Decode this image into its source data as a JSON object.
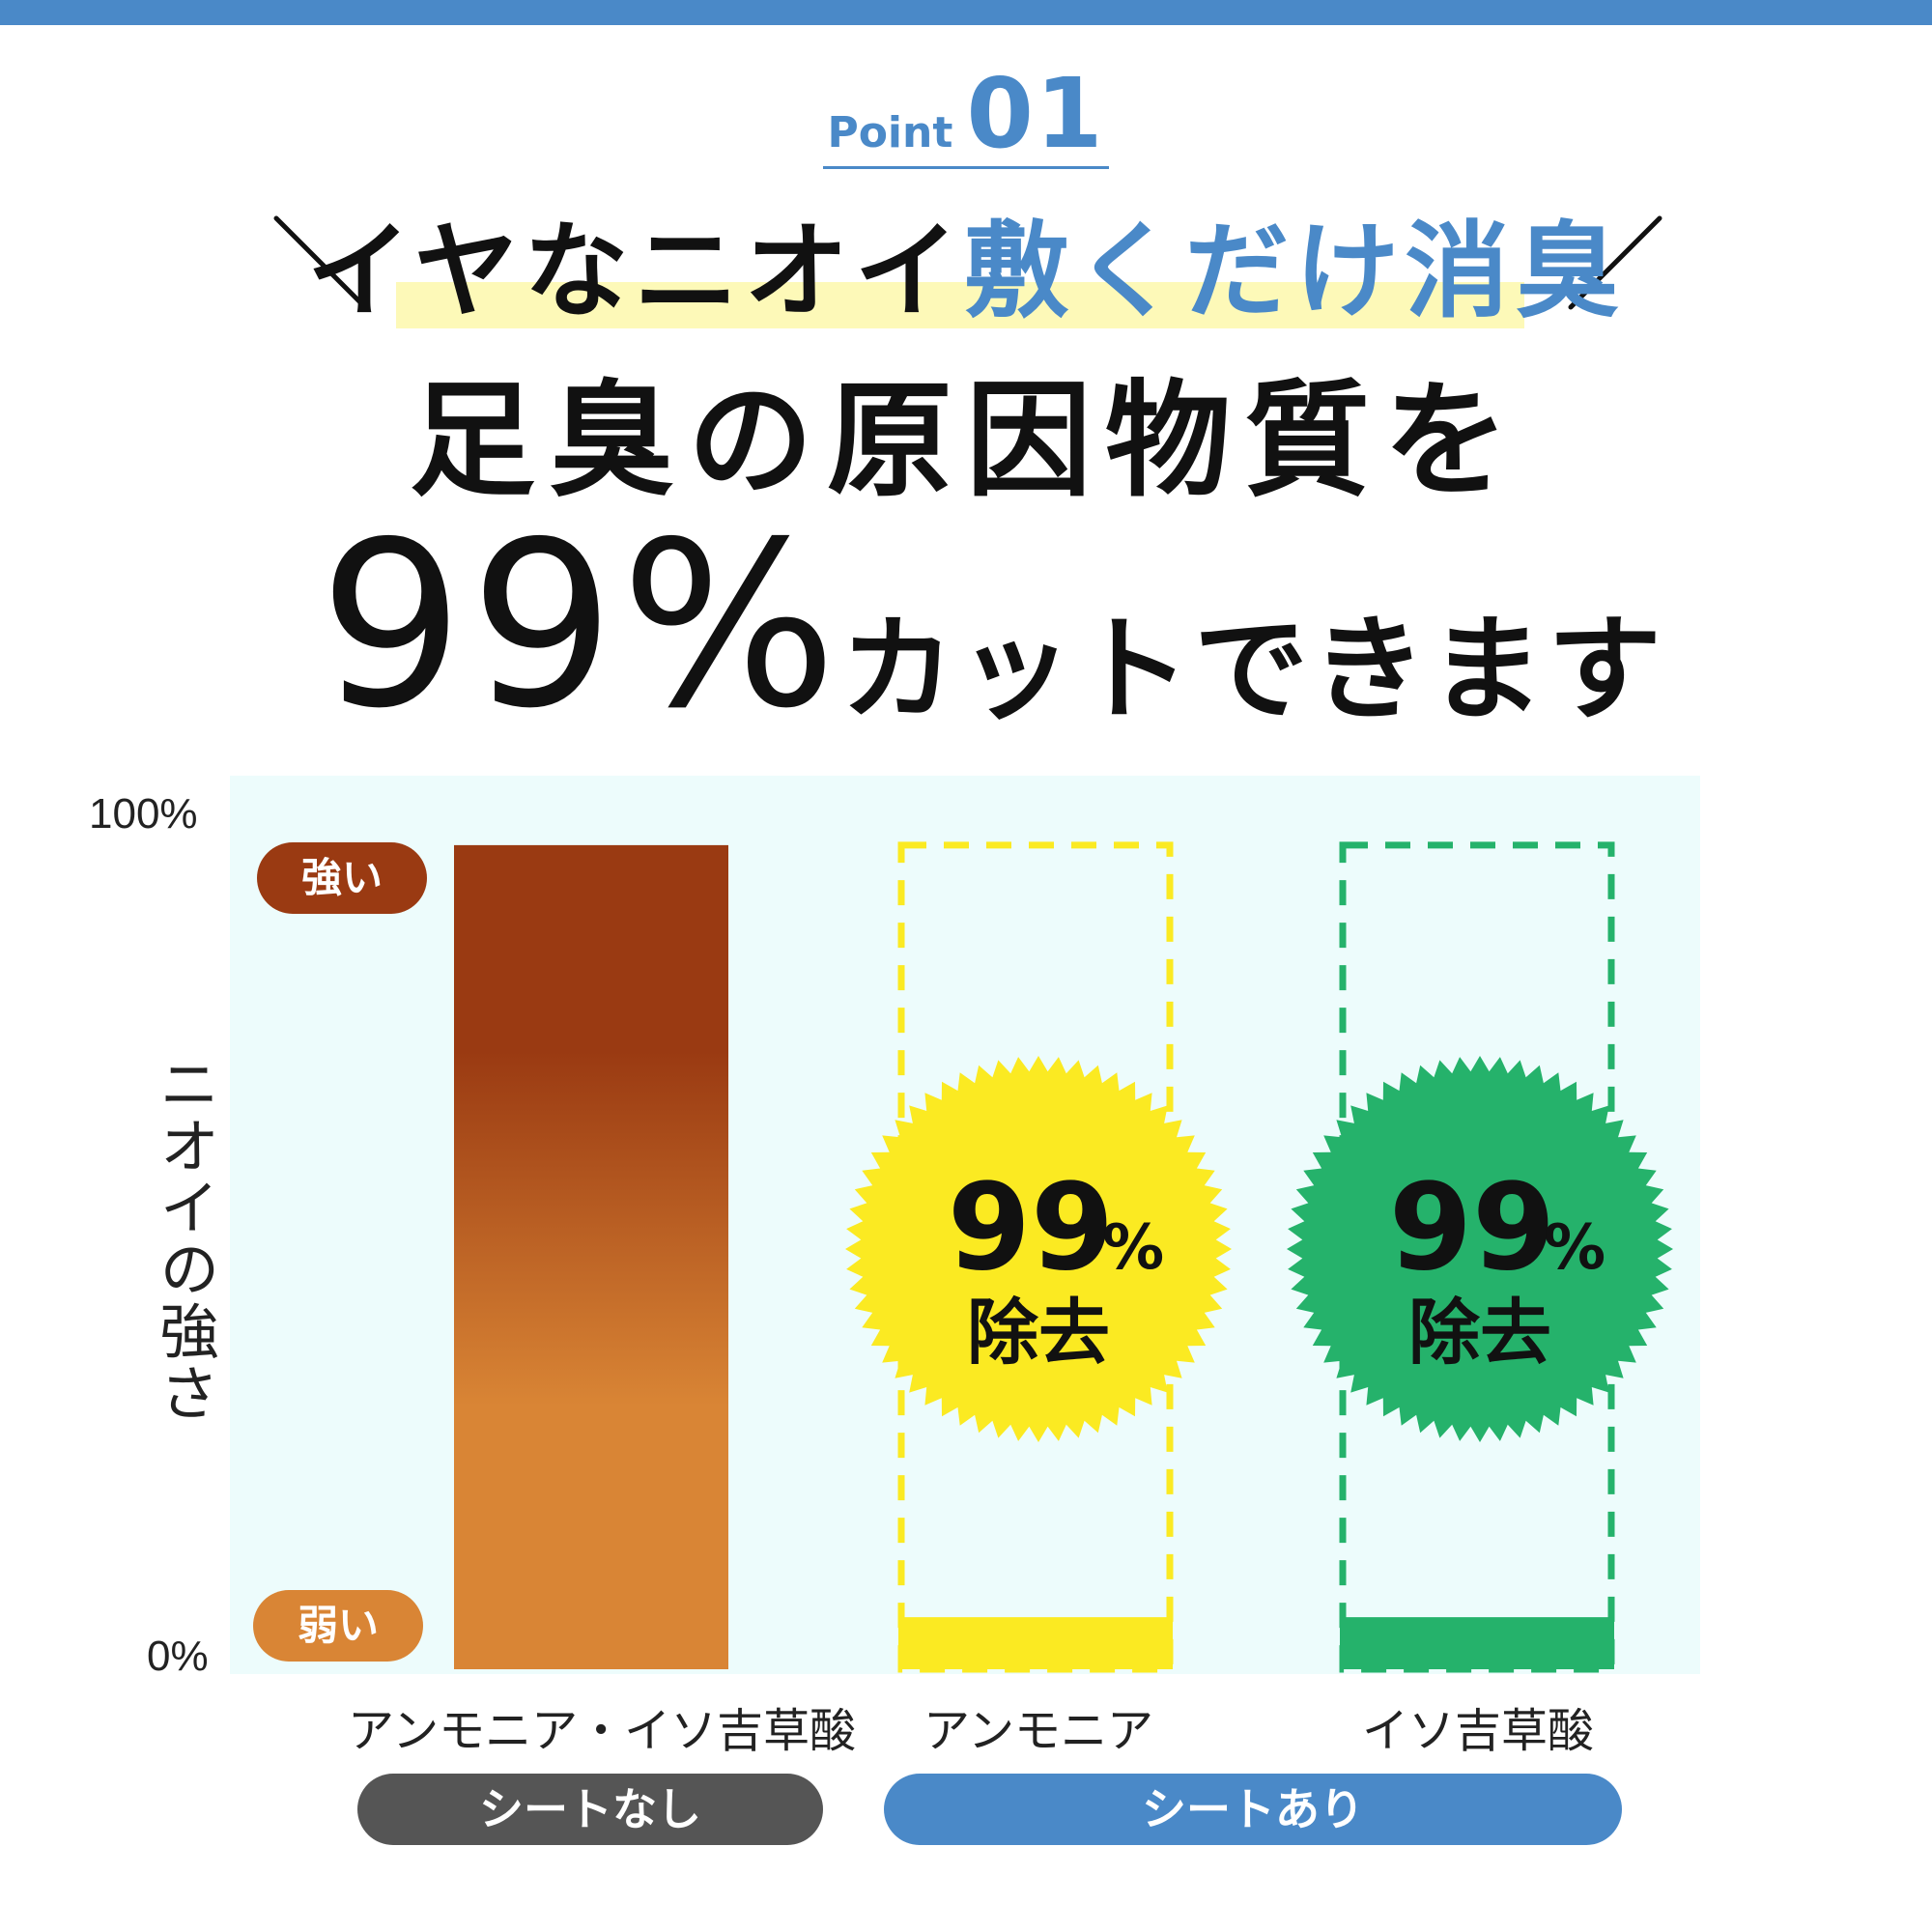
{
  "header": {
    "point_word": "Point",
    "point_number": "01"
  },
  "headline": {
    "black_part": "イヤなニオイ",
    "blue_part": "敷くだけ消臭",
    "line2": "足臭の原因物質を",
    "big_value": "99%",
    "line3_rest": "カットできます"
  },
  "colors": {
    "accent_blue": "#4a89c8",
    "bar_top": "#9a3a12",
    "bar_bottom": "#d98535",
    "yellow": "#fbea22",
    "green": "#25b26b",
    "gray_pill": "#555555",
    "chart_bg": "#edfcfc"
  },
  "chart_data": {
    "type": "bar",
    "y_tick_labels": [
      "100%",
      "0%"
    ],
    "ylim": [
      0,
      100
    ],
    "ylabel": "ニオイの強さ",
    "scale_labels": {
      "high": "強い",
      "low": "弱い"
    },
    "categories": [
      "アンモニア・イソ吉草酸",
      "アンモニア",
      "イソ吉草酸"
    ],
    "values": [
      95,
      6,
      6
    ],
    "removed_outline_value": 95,
    "groups": [
      {
        "label": "シートなし",
        "categories": [
          "アンモニア・イソ吉草酸"
        ]
      },
      {
        "label": "シートあり",
        "categories": [
          "アンモニア",
          "イソ吉草酸"
        ]
      }
    ],
    "badges": [
      {
        "category": "アンモニア",
        "value": "99",
        "unit": "%",
        "text": "除去",
        "color": "#fbea22"
      },
      {
        "category": "イソ吉草酸",
        "value": "99",
        "unit": "%",
        "text": "除去",
        "color": "#25b26b"
      }
    ]
  }
}
